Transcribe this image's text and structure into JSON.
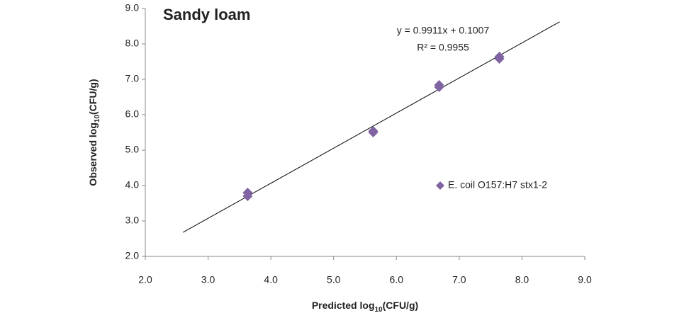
{
  "chart_data": {
    "type": "scatter",
    "title": "Sandy loam",
    "xlabel": [
      "Predicted log",
      "10",
      "(CFU/g)"
    ],
    "ylabel": [
      "Observed log",
      "10",
      "(CFU/g)"
    ],
    "series": [
      {
        "name": "E. coil O157:H7 stx1-2",
        "color": "#8064a2",
        "x": [
          3.63,
          3.63,
          5.63,
          5.63,
          6.68,
          6.68,
          7.64,
          7.64
        ],
        "values": [
          3.8,
          3.7,
          5.54,
          5.5,
          6.84,
          6.78,
          7.64,
          7.58
        ]
      }
    ],
    "trendline": {
      "slope": 0.9911,
      "intercept": 0.1007,
      "x_range": [
        2.6,
        8.6
      ],
      "equation": "y = 0.9911x + 0.1007",
      "r_squared": "R² = 0.9955"
    },
    "xlim": [
      2,
      9
    ],
    "ylim": [
      2,
      9
    ],
    "xticks": [
      {
        "value": 2,
        "label": "2.0"
      },
      {
        "value": 3,
        "label": "3.0"
      },
      {
        "value": 4,
        "label": "4.0"
      },
      {
        "value": 5,
        "label": "5.0"
      },
      {
        "value": 6,
        "label": "6.0"
      },
      {
        "value": 7,
        "label": "7.0"
      },
      {
        "value": 8,
        "label": "8.0"
      },
      {
        "value": 9,
        "label": "9.0"
      }
    ],
    "yticks": [
      {
        "value": 2,
        "label": "2.0"
      },
      {
        "value": 3,
        "label": "3.0"
      },
      {
        "value": 4,
        "label": "4.0"
      },
      {
        "value": 5,
        "label": "5.0"
      },
      {
        "value": 6,
        "label": "6.0"
      },
      {
        "value": 7,
        "label": "7.0"
      },
      {
        "value": 8,
        "label": "8.0"
      },
      {
        "value": 9,
        "label": "9.0"
      }
    ],
    "grid": false
  }
}
